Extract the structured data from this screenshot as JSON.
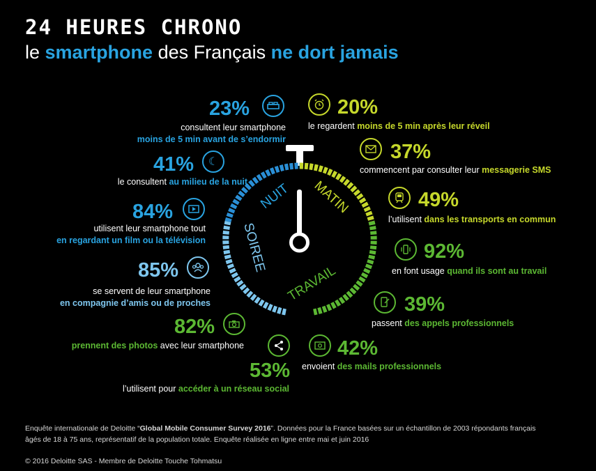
{
  "title": {
    "line1": "24 HEURES CHRONO",
    "line2_a": "le ",
    "line2_b": "smartphone",
    "line2_c": " des Français ",
    "line2_d": "ne dort jamais"
  },
  "dial": {
    "labels": [
      "NUIT",
      "MATIN",
      "SOIREE",
      "TRAVAIL"
    ],
    "colors": {
      "nuit": "#2a8fd6",
      "matin": "#c6d82b",
      "soiree": "#7ec6ee",
      "travail": "#5cb833"
    }
  },
  "stats": {
    "s23": {
      "pct": "23%",
      "icon": "bed-icon",
      "line1": "consultent leur smartphone",
      "line2": "moins de 5 min avant de s’endormir"
    },
    "s41": {
      "pct": "41%",
      "icon": "moon-icon",
      "line1a": "le consultent ",
      "line1b": "au milieu de la nuit"
    },
    "s84": {
      "pct": "84%",
      "icon": "film-icon",
      "line1": "utilisent leur smartphone tout",
      "line2": "en regardant un film ou la télévision"
    },
    "s85": {
      "pct": "85%",
      "icon": "people-icon",
      "line1": "se servent de leur smartphone",
      "line2": "en compagnie d’amis ou de proches"
    },
    "s82": {
      "pct": "82%",
      "icon": "camera-icon",
      "line1a": "prennent des photos",
      "line1b": " avec leur smartphone"
    },
    "s53": {
      "pct": "53%",
      "icon": "share-icon",
      "line1a": "l’utilisent pour ",
      "line1b": "accéder à un réseau social"
    },
    "s20": {
      "pct": "20%",
      "icon": "alarm-clock-icon",
      "line1a": "le regardent ",
      "line1b": "moins de 5 min après leur réveil"
    },
    "s37": {
      "pct": "37%",
      "icon": "envelope-icon",
      "line1a": "commencent par consulter leur ",
      "line1b": "messagerie SMS"
    },
    "s49": {
      "pct": "49%",
      "icon": "train-icon",
      "line1a": "l’utilisent ",
      "line1b": "dans les transports en commun"
    },
    "s92": {
      "pct": "92%",
      "icon": "phone-vibrate-icon",
      "line1a": "en font usage ",
      "line1b": "quand ils sont au travail"
    },
    "s39": {
      "pct": "39%",
      "icon": "phone-call-icon",
      "line1a": "passent ",
      "line1b": "des appels professionnels"
    },
    "s42": {
      "pct": "42%",
      "icon": "mail-icon",
      "line1a": "envoient ",
      "line1b": "des mails professionnels"
    }
  },
  "footer": {
    "line1a": "Enquête internationale de Deloitte “",
    "line1b": "Global Mobile Consumer Survey 2016",
    "line1c": "”. Données pour la France basées sur un échantillon de 2003 répondants français",
    "line2": "âgés de 18 à 75 ans, représentatif de la population totale. Enquête réalisée en ligne entre mai et juin 2016",
    "copyright": "© 2016 Deloitte SAS - Membre de Deloitte Touche Tohmatsu"
  }
}
